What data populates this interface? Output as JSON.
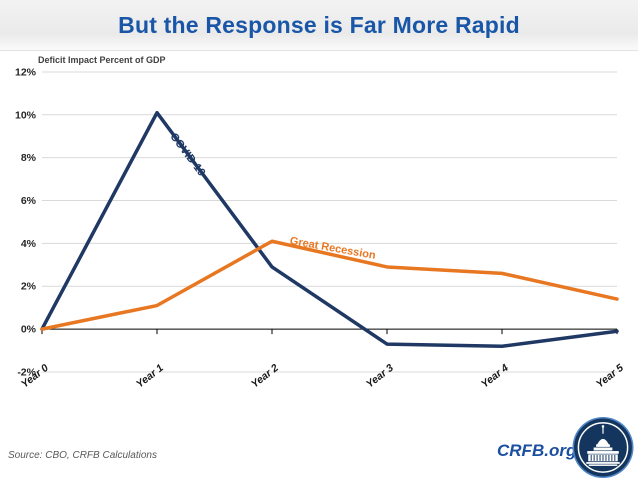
{
  "header": {
    "title": "But the Response is Far More Rapid",
    "title_color": "#1956A8"
  },
  "chart_data": {
    "type": "line",
    "axis_title": "Deficit Impact Percent of GDP",
    "categories": [
      "Year 0",
      "Year 1",
      "Year 2",
      "Year 3",
      "Year 4",
      "Year 5"
    ],
    "series": [
      {
        "name": "COVID-19",
        "color": "#1F3864",
        "values": [
          0,
          10.1,
          2.9,
          -0.7,
          -0.8,
          -0.1
        ]
      },
      {
        "name": "Great Recession",
        "color": "#E87722",
        "values": [
          0,
          1.1,
          4.1,
          2.9,
          2.6,
          1.4
        ]
      }
    ],
    "ylim": [
      -2,
      12
    ],
    "ytick_step": 2,
    "ytick_suffix": "%",
    "grid": true,
    "grid_color": "#D9D9D9",
    "axis_color": "#000000",
    "tick_label_color": "#262626",
    "legend_position": "inline-labels"
  },
  "footer": {
    "source": "Source: CBO, CRFB Calculations",
    "brand": "CRFB.org"
  }
}
